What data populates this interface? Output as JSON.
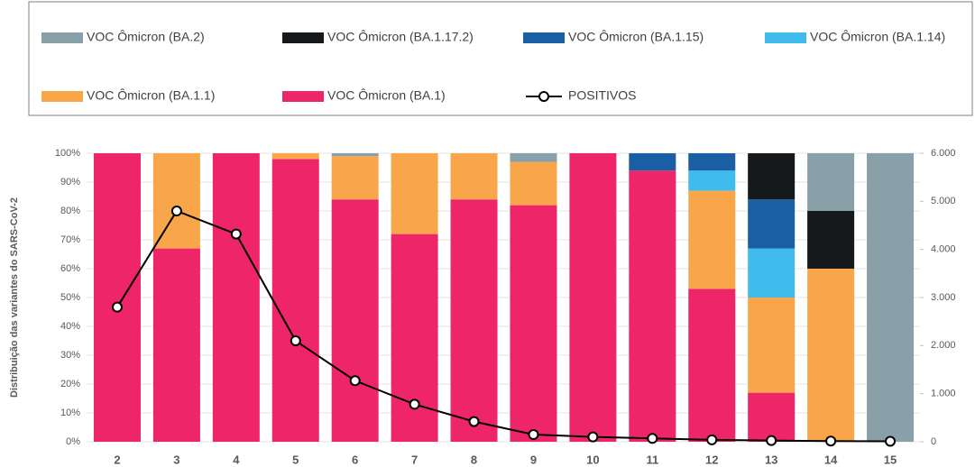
{
  "chart_data": {
    "type": "bar",
    "stacked": true,
    "y_label": "Distribuição das variantes do SARS-CoV-2",
    "categories": [
      "2",
      "3",
      "4",
      "5",
      "6",
      "7",
      "8",
      "9",
      "10",
      "11",
      "12",
      "13",
      "14",
      "15"
    ],
    "series": [
      {
        "name": "VOC Ômicron (BA.2)",
        "color": "#8aa0a8",
        "values": [
          0,
          0,
          0,
          0,
          1,
          0,
          0,
          3,
          0,
          0,
          0,
          0,
          20,
          100
        ]
      },
      {
        "name": "VOC Ômicron (BA.1.17.2)",
        "color": "#15191c",
        "values": [
          0,
          0,
          0,
          0,
          0,
          0,
          0,
          0,
          0,
          0,
          0,
          16,
          20,
          0
        ]
      },
      {
        "name": "VOC Ômicron (BA.1.15)",
        "color": "#1a5ea3",
        "values": [
          0,
          0,
          0,
          0,
          0,
          0,
          0,
          0,
          0,
          6,
          6,
          17,
          0,
          0
        ]
      },
      {
        "name": "VOC Ômicron (BA.1.14)",
        "color": "#3fbcec",
        "values": [
          0,
          0,
          0,
          0,
          0,
          0,
          0,
          0,
          0,
          0,
          7,
          17,
          0,
          0
        ]
      },
      {
        "name": "VOC Ômicron (BA.1.1)",
        "color": "#f9a64a",
        "values": [
          0,
          33,
          0,
          2,
          15,
          28,
          16,
          15,
          0,
          0,
          34,
          33,
          60,
          0
        ]
      },
      {
        "name": "VOC Ômicron (BA.1)",
        "color": "#ee2569",
        "values": [
          100,
          67,
          100,
          98,
          84,
          72,
          84,
          82,
          100,
          94,
          53,
          17,
          0,
          0
        ]
      },
      {
        "name": "POSITIVOS",
        "color": "#000000",
        "type": "line",
        "axis": "y2",
        "values": [
          2800,
          4800,
          4320,
          2100,
          1270,
          780,
          420,
          150,
          100,
          70,
          40,
          25,
          15,
          10
        ]
      }
    ],
    "ylim": [
      0,
      100
    ],
    "yticks": [
      {
        "value": 0,
        "label": "0%"
      },
      {
        "value": 10,
        "label": "10%"
      },
      {
        "value": 20,
        "label": "20%"
      },
      {
        "value": 30,
        "label": "30%"
      },
      {
        "value": 40,
        "label": "40%"
      },
      {
        "value": 50,
        "label": "50%"
      },
      {
        "value": 60,
        "label": "60%"
      },
      {
        "value": 70,
        "label": "70%"
      },
      {
        "value": 80,
        "label": "80%"
      },
      {
        "value": 90,
        "label": "90%"
      },
      {
        "value": 100,
        "label": "100%"
      }
    ],
    "y2lim": [
      0,
      6000
    ],
    "y2ticks": [
      0,
      {
        "value": 1000,
        "label": "1.000"
      },
      {
        "value": 2000,
        "label": "2.000"
      },
      {
        "value": 3000,
        "label": "3.000"
      },
      {
        "value": 4000,
        "label": "4.000"
      },
      {
        "value": 5000,
        "label": "5.000"
      },
      {
        "value": 6000,
        "label": "6.000"
      }
    ],
    "grid": true
  }
}
